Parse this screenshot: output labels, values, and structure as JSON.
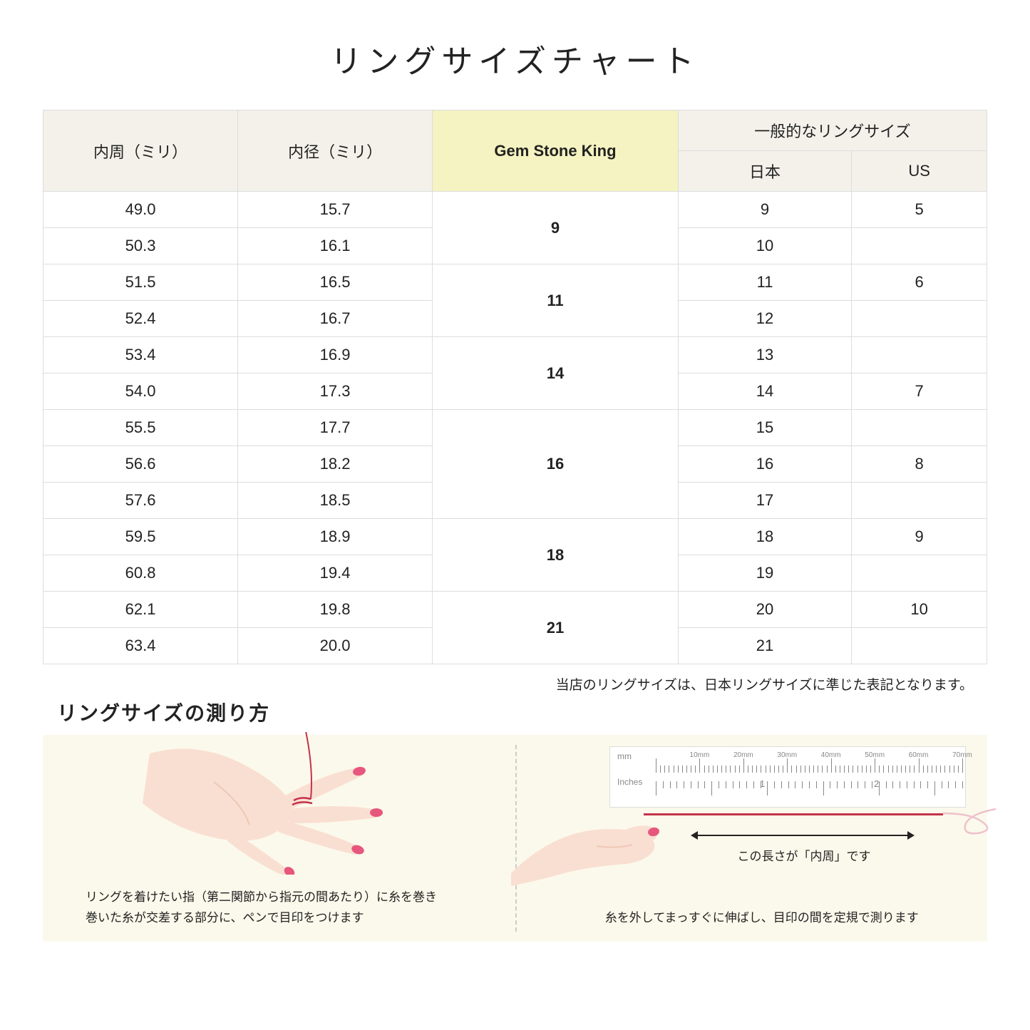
{
  "title": "リングサイズチャート",
  "table": {
    "headers": {
      "inner_circ": "内周（ミリ）",
      "inner_diam": "内径（ミリ）",
      "gsk": "Gem Stone King",
      "common": "一般的なリングサイズ",
      "japan": "日本",
      "us": "US"
    },
    "groups": [
      {
        "gsk": "9",
        "rows": [
          {
            "circ": "49.0",
            "diam": "15.7",
            "jp": "9",
            "us": "5"
          },
          {
            "circ": "50.3",
            "diam": "16.1",
            "jp": "10",
            "us": ""
          }
        ]
      },
      {
        "gsk": "11",
        "rows": [
          {
            "circ": "51.5",
            "diam": "16.5",
            "jp": "11",
            "us": "6"
          },
          {
            "circ": "52.4",
            "diam": "16.7",
            "jp": "12",
            "us": ""
          }
        ]
      },
      {
        "gsk": "14",
        "rows": [
          {
            "circ": "53.4",
            "diam": "16.9",
            "jp": "13",
            "us": ""
          },
          {
            "circ": "54.0",
            "diam": "17.3",
            "jp": "14",
            "us": "7"
          }
        ]
      },
      {
        "gsk": "16",
        "rows": [
          {
            "circ": "55.5",
            "diam": "17.7",
            "jp": "15",
            "us": ""
          },
          {
            "circ": "56.6",
            "diam": "18.2",
            "jp": "16",
            "us": "8"
          },
          {
            "circ": "57.6",
            "diam": "18.5",
            "jp": "17",
            "us": ""
          }
        ]
      },
      {
        "gsk": "18",
        "rows": [
          {
            "circ": "59.5",
            "diam": "18.9",
            "jp": "18",
            "us": "9"
          },
          {
            "circ": "60.8",
            "diam": "19.4",
            "jp": "19",
            "us": ""
          }
        ]
      },
      {
        "gsk": "21",
        "rows": [
          {
            "circ": "62.1",
            "diam": "19.8",
            "jp": "20",
            "us": "10"
          },
          {
            "circ": "63.4",
            "diam": "20.0",
            "jp": "21",
            "us": ""
          }
        ]
      }
    ]
  },
  "note": "当店のリングサイズは、日本リングサイズに準じた表記となります。",
  "howto": {
    "title": "リングサイズの測り方",
    "left_caption": "リングを着けたい指（第二関節から指元の間あたり）に糸を巻き\n巻いた糸が交差する部分に、ペンで目印をつけます",
    "right_caption": "糸を外してまっすぐに伸ばし、目印の間を定規で測ります",
    "arrow_label": "この長さが「内周」です",
    "ruler_mm_labels": [
      "10mm",
      "20mm",
      "30mm",
      "40mm",
      "50mm",
      "60mm",
      "70mm"
    ],
    "ruler_mm_unit": "mm",
    "ruler_in_unit": "Inches",
    "ruler_in_labels": [
      "1",
      "2"
    ]
  },
  "colors": {
    "header_bg": "#f3f1ea",
    "gsk_header_bg": "#f5f3c1",
    "border": "#dddddd",
    "howto_bg": "#fbf9eb",
    "skin": "#f9dfd2",
    "skin_dark": "#eec8b5",
    "nail": "#e6567d",
    "thread": "#c4324a"
  }
}
